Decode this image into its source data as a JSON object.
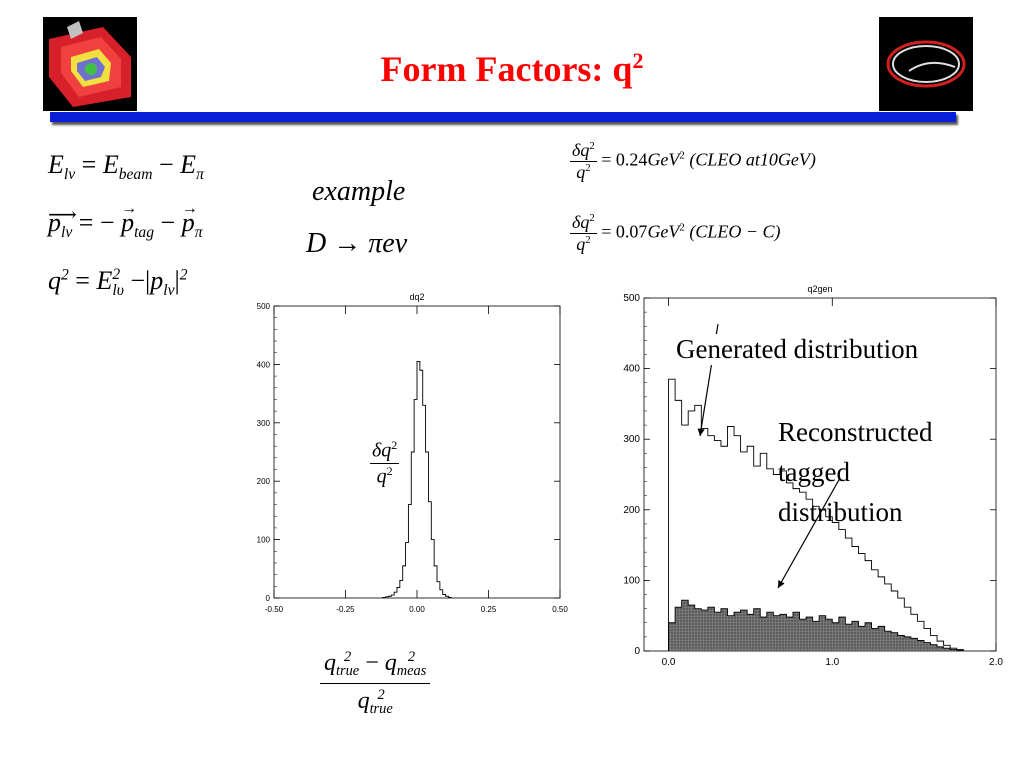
{
  "slide": {
    "title": "Form Factors: q",
    "title_sup": "2",
    "left_logo_icon": "cleo-detector-cutaway-icon",
    "right_logo_icon": "cleo-ring-logo-icon"
  },
  "equations": {
    "eq1": {
      "lhs": "E",
      "lhs_sub": "lν",
      "eq": " = ",
      "a": "E",
      "a_sub": "beam",
      "minus": " − ",
      "b": "E",
      "b_sub": "π"
    },
    "eq2": {
      "lhs": "p",
      "lhs_sub": "lν",
      "eq": " = − ",
      "a": "p",
      "a_sub": "tag",
      "minus": " − ",
      "b": "p",
      "b_sub": "π"
    },
    "eq3": {
      "lhs": "q",
      "lhs_sup": "2",
      "eq": " = ",
      "a": "E",
      "a_sub": "lυ",
      "a_sup": "2",
      "minus": " −",
      "b": "p",
      "b_sub": "lν",
      "b_sup": "2"
    },
    "example_label": "example",
    "decay": {
      "d": "D",
      "arrow": " → ",
      "pi": "π",
      "e": "e",
      "nu": "ν"
    },
    "res1": {
      "num": "δq",
      "num_sup": "2",
      "den": "q",
      "den_sup": "2",
      "value": "= 0.24",
      "unit": "GeV",
      "unit_sup": "2",
      "note": "(CLEO at10GeV)"
    },
    "res2": {
      "num": "δq",
      "num_sup": "2",
      "den": "q",
      "den_sup": "2",
      "value": "= 0.07",
      "unit": "GeV",
      "unit_sup": "2",
      "note": "(CLEO − C)"
    },
    "plot_frac": {
      "num": "δq",
      "num_sup": "2",
      "den": "q",
      "den_sup": "2"
    },
    "bottom_frac": {
      "a": "q",
      "a_sup": "2",
      "a_sub": "true",
      "minus": " − ",
      "b": "q",
      "b_sup": "2",
      "b_sub": "meas",
      "den": "q",
      "den_sup": "2",
      "den_sub": "true"
    }
  },
  "annotations": {
    "generated": "Generated distribution",
    "reconstructed_1": "Reconstructed",
    "reconstructed_2": "tagged",
    "reconstructed_3": "distribution"
  },
  "chart_data": [
    {
      "type": "histogram",
      "title": "dq2",
      "xlim": [
        -0.5,
        0.5
      ],
      "ylim": [
        0,
        500
      ],
      "x_ticks": [
        "-0.50",
        "-0.25",
        "0.00",
        "0.25",
        "0.50"
      ],
      "y_ticks": [
        "0",
        "100",
        "200",
        "300",
        "400",
        "500"
      ],
      "series": [
        {
          "bin_width": 0.01,
          "x": [
            -0.12,
            -0.11,
            -0.1,
            -0.09,
            -0.08,
            -0.07,
            -0.06,
            -0.05,
            -0.04,
            -0.03,
            -0.02,
            -0.01,
            0.0,
            0.01,
            0.02,
            0.03,
            0.04,
            0.05,
            0.06,
            0.07,
            0.08,
            0.09,
            0.1,
            0.11
          ],
          "values": [
            1,
            2,
            3,
            5,
            10,
            18,
            30,
            55,
            95,
            160,
            250,
            340,
            405,
            390,
            330,
            250,
            165,
            100,
            55,
            28,
            14,
            6,
            3,
            1
          ]
        }
      ]
    },
    {
      "type": "histogram",
      "title": "q2gen",
      "xlim": [
        -0.15,
        2.0
      ],
      "ylim": [
        0,
        500
      ],
      "x_ticks": [
        "0.0",
        "1.0",
        "2.0"
      ],
      "y_ticks": [
        "0",
        "100",
        "200",
        "300",
        "400",
        "500"
      ],
      "series": [
        {
          "name": "Generated distribution",
          "bin_width": 0.04,
          "x": [
            0.0,
            0.04,
            0.08,
            0.12,
            0.16,
            0.2,
            0.24,
            0.28,
            0.32,
            0.36,
            0.4,
            0.44,
            0.48,
            0.52,
            0.56,
            0.6,
            0.64,
            0.68,
            0.72,
            0.76,
            0.8,
            0.84,
            0.88,
            0.92,
            0.96,
            1.0,
            1.04,
            1.08,
            1.12,
            1.16,
            1.2,
            1.24,
            1.28,
            1.32,
            1.36,
            1.4,
            1.44,
            1.48,
            1.52,
            1.56,
            1.6,
            1.64,
            1.68,
            1.72,
            1.76
          ],
          "values": [
            385,
            355,
            320,
            340,
            348,
            315,
            305,
            298,
            290,
            318,
            305,
            282,
            290,
            262,
            280,
            258,
            250,
            255,
            238,
            230,
            225,
            215,
            205,
            200,
            190,
            182,
            172,
            160,
            148,
            138,
            128,
            115,
            105,
            95,
            85,
            75,
            62,
            52,
            42,
            32,
            22,
            14,
            8,
            4,
            2
          ]
        },
        {
          "name": "Reconstructed tagged distribution",
          "bin_width": 0.04,
          "x": [
            0.0,
            0.04,
            0.08,
            0.12,
            0.16,
            0.2,
            0.24,
            0.28,
            0.32,
            0.36,
            0.4,
            0.44,
            0.48,
            0.52,
            0.56,
            0.6,
            0.64,
            0.68,
            0.72,
            0.76,
            0.8,
            0.84,
            0.88,
            0.92,
            0.96,
            1.0,
            1.04,
            1.08,
            1.12,
            1.16,
            1.2,
            1.24,
            1.28,
            1.32,
            1.36,
            1.4,
            1.44,
            1.48,
            1.52,
            1.56,
            1.6,
            1.64,
            1.68,
            1.72,
            1.76
          ],
          "values": [
            40,
            62,
            72,
            65,
            60,
            58,
            62,
            55,
            60,
            50,
            55,
            58,
            52,
            60,
            48,
            55,
            50,
            52,
            48,
            55,
            45,
            48,
            42,
            50,
            45,
            40,
            48,
            38,
            42,
            35,
            40,
            32,
            35,
            28,
            26,
            22,
            20,
            18,
            15,
            12,
            9,
            6,
            4,
            2,
            1
          ]
        }
      ]
    }
  ]
}
